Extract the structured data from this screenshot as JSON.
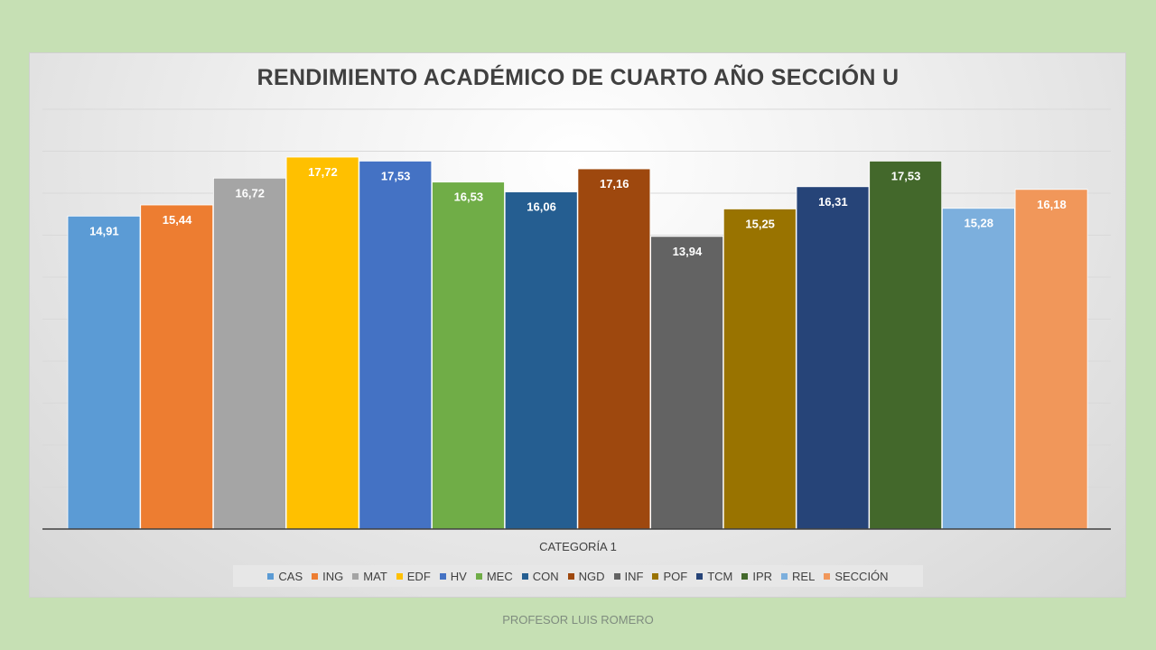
{
  "chart_data": {
    "type": "bar",
    "title": "RENDIMIENTO ACADÉMICO DE CUARTO AÑO SECCIÓN U",
    "categories": [
      "CATEGORÍA 1"
    ],
    "series": [
      {
        "name": "CAS",
        "values": [
          14.91
        ],
        "label": "14,91",
        "color": "#5b9bd5"
      },
      {
        "name": "ING",
        "values": [
          15.44
        ],
        "label": "15,44",
        "color": "#ed7d31"
      },
      {
        "name": "MAT",
        "values": [
          16.72
        ],
        "label": "16,72",
        "color": "#a5a5a5"
      },
      {
        "name": "EDF",
        "values": [
          17.72
        ],
        "label": "17,72",
        "color": "#ffc000"
      },
      {
        "name": "HV",
        "values": [
          17.53
        ],
        "label": "17,53",
        "color": "#4472c4"
      },
      {
        "name": "MEC",
        "values": [
          16.53
        ],
        "label": "16,53",
        "color": "#70ad47"
      },
      {
        "name": "CON",
        "values": [
          16.06
        ],
        "label": "16,06",
        "color": "#255e91"
      },
      {
        "name": "NGD",
        "values": [
          17.16
        ],
        "label": "17,16",
        "color": "#9e480e"
      },
      {
        "name": "INF",
        "values": [
          13.94
        ],
        "label": "13,94",
        "color": "#636363"
      },
      {
        "name": "POF",
        "values": [
          15.25
        ],
        "label": "15,25",
        "color": "#997300"
      },
      {
        "name": "TCM",
        "values": [
          16.31
        ],
        "label": "16,31",
        "color": "#264478"
      },
      {
        "name": "IPR",
        "values": [
          17.53
        ],
        "label": "17,53",
        "color": "#43682b"
      },
      {
        "name": "REL",
        "values": [
          15.28
        ],
        "label": "15,28",
        "color": "#7cafdd"
      },
      {
        "name": "SECCIÓN",
        "values": [
          16.18
        ],
        "label": "16,18",
        "color": "#f1975a"
      }
    ],
    "ylim": [
      0,
      20
    ],
    "grid": true,
    "legend": "bottom"
  },
  "footer": {
    "credit": "PROFESOR LUIS ROMERO"
  }
}
